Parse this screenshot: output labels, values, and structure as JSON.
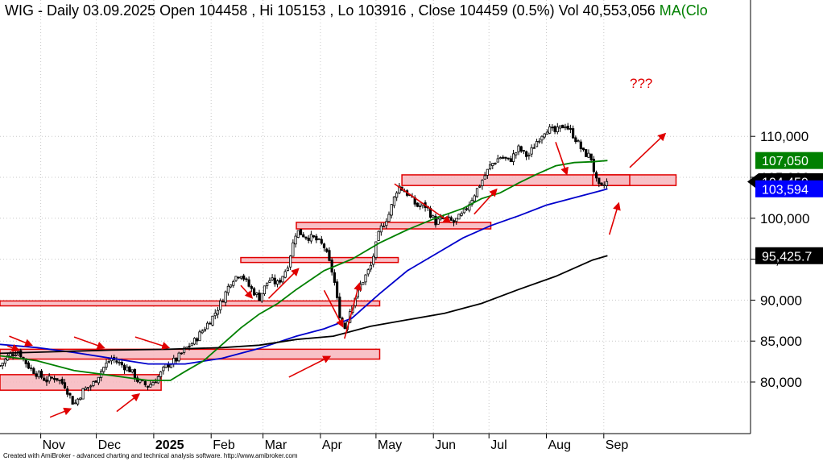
{
  "chart_data": {
    "type": "candlestick",
    "symbol": "WIG",
    "header": {
      "symbol": "WIG",
      "period": "Daily",
      "date": "03.09.2025",
      "open": "Open 104458",
      "high": "Hi 105153",
      "low": "Lo 103916",
      "close": "Close 104459 (0.5%)",
      "volume": "Vol 40,553,056",
      "ma_label": "MA(Clo"
    },
    "yaxis": {
      "ticks": [
        80000,
        85000,
        90000,
        95000,
        100000,
        105000,
        110000
      ],
      "tick_labels": [
        "80,000",
        "85,000",
        "90,000",
        "95,000",
        "100,000",
        "105,000",
        "110,000"
      ],
      "ylim": [
        75000,
        112500
      ]
    },
    "xaxis": {
      "months": [
        {
          "label": "Nov",
          "day": 22
        },
        {
          "label": "Dec",
          "day": 52
        },
        {
          "label": "2025",
          "day": 83,
          "bold": true
        },
        {
          "label": "Feb",
          "day": 114
        },
        {
          "label": "Mar",
          "day": 142
        },
        {
          "label": "Apr",
          "day": 173
        },
        {
          "label": "May",
          "day": 203
        },
        {
          "label": "Jun",
          "day": 234
        },
        {
          "label": "Jul",
          "day": 264
        },
        {
          "label": "Aug",
          "day": 295
        },
        {
          "label": "Sep",
          "day": 326
        }
      ],
      "xlim": [
        0,
        400
      ]
    },
    "price_tags": [
      {
        "value": 107050,
        "label": "107,050",
        "color": "#008000"
      },
      {
        "value": 104459,
        "label": "104,459",
        "color": "#000000",
        "arrow": true
      },
      {
        "value": 103594,
        "label": "103,594",
        "color": "#0000ff"
      },
      {
        "value": 95425.7,
        "label": "95,425.7",
        "color": "#000000"
      }
    ],
    "price_path": [
      [
        0,
        82000
      ],
      [
        5,
        83300
      ],
      [
        10,
        83800
      ],
      [
        15,
        82000
      ],
      [
        20,
        81000
      ],
      [
        25,
        80200
      ],
      [
        30,
        80600
      ],
      [
        35,
        79600
      ],
      [
        40,
        77200
      ],
      [
        45,
        79000
      ],
      [
        50,
        79700
      ],
      [
        55,
        81500
      ],
      [
        60,
        82900
      ],
      [
        65,
        82200
      ],
      [
        70,
        81500
      ],
      [
        75,
        80000
      ],
      [
        80,
        79500
      ],
      [
        85,
        80500
      ],
      [
        90,
        82000
      ],
      [
        95,
        82700
      ],
      [
        100,
        84000
      ],
      [
        105,
        85000
      ],
      [
        110,
        86500
      ],
      [
        115,
        88000
      ],
      [
        120,
        90000
      ],
      [
        125,
        92500
      ],
      [
        130,
        93300
      ],
      [
        135,
        91500
      ],
      [
        140,
        90300
      ],
      [
        145,
        92500
      ],
      [
        150,
        92000
      ],
      [
        155,
        94000
      ],
      [
        160,
        98500
      ],
      [
        165,
        97800
      ],
      [
        170,
        97500
      ],
      [
        175,
        96500
      ],
      [
        180,
        93000
      ],
      [
        183,
        88500
      ],
      [
        186,
        86500
      ],
      [
        190,
        89500
      ],
      [
        195,
        92000
      ],
      [
        200,
        94000
      ],
      [
        205,
        98500
      ],
      [
        210,
        100500
      ],
      [
        215,
        104000
      ],
      [
        220,
        103000
      ],
      [
        225,
        101500
      ],
      [
        230,
        101500
      ],
      [
        235,
        99500
      ],
      [
        240,
        100000
      ],
      [
        245,
        99500
      ],
      [
        250,
        100500
      ],
      [
        255,
        102500
      ],
      [
        260,
        104500
      ],
      [
        265,
        106500
      ],
      [
        270,
        107500
      ],
      [
        275,
        107000
      ],
      [
        280,
        108500
      ],
      [
        285,
        107500
      ],
      [
        290,
        109500
      ],
      [
        295,
        111000
      ],
      [
        300,
        110500
      ],
      [
        305,
        111500
      ],
      [
        310,
        110000
      ],
      [
        315,
        108000
      ],
      [
        319,
        107500
      ],
      [
        322,
        104500
      ],
      [
        324,
        103500
      ],
      [
        326,
        104000
      ],
      [
        328,
        104459
      ]
    ],
    "series": [
      {
        "name": "",
        "color": "#0000cc",
        "points": [
          [
            0,
            84600
          ],
          [
            20,
            84200
          ],
          [
            40,
            83600
          ],
          [
            60,
            82900
          ],
          [
            80,
            82200
          ],
          [
            100,
            82200
          ],
          [
            120,
            82900
          ],
          [
            140,
            84100
          ],
          [
            160,
            85600
          ],
          [
            175,
            86500
          ],
          [
            190,
            87800
          ],
          [
            205,
            90800
          ],
          [
            220,
            93600
          ],
          [
            235,
            95600
          ],
          [
            250,
            97600
          ],
          [
            265,
            99100
          ],
          [
            280,
            100300
          ],
          [
            295,
            101600
          ],
          [
            310,
            102500
          ],
          [
            325,
            103400
          ],
          [
            328,
            103594
          ]
        ]
      },
      {
        "name": "",
        "color": "#008000",
        "points": [
          [
            0,
            83200
          ],
          [
            20,
            82600
          ],
          [
            40,
            81400
          ],
          [
            60,
            80800
          ],
          [
            80,
            80200
          ],
          [
            92,
            80200
          ],
          [
            100,
            81300
          ],
          [
            110,
            82600
          ],
          [
            120,
            84600
          ],
          [
            130,
            86600
          ],
          [
            140,
            88300
          ],
          [
            150,
            89600
          ],
          [
            160,
            91300
          ],
          [
            175,
            93600
          ],
          [
            190,
            95000
          ],
          [
            205,
            97000
          ],
          [
            220,
            98600
          ],
          [
            235,
            100000
          ],
          [
            250,
            101200
          ],
          [
            260,
            102400
          ],
          [
            270,
            103100
          ],
          [
            280,
            104300
          ],
          [
            290,
            105400
          ],
          [
            300,
            106400
          ],
          [
            310,
            106800
          ],
          [
            320,
            106900
          ],
          [
            328,
            107050
          ]
        ]
      },
      {
        "name": "",
        "color": "#000000",
        "points": [
          [
            0,
            83500
          ],
          [
            30,
            83700
          ],
          [
            60,
            83900
          ],
          [
            90,
            84000
          ],
          [
            120,
            84200
          ],
          [
            140,
            84500
          ],
          [
            160,
            85200
          ],
          [
            180,
            85600
          ],
          [
            200,
            86800
          ],
          [
            220,
            87600
          ],
          [
            240,
            88400
          ],
          [
            260,
            89600
          ],
          [
            280,
            91300
          ],
          [
            300,
            92900
          ],
          [
            320,
            94900
          ],
          [
            328,
            95425.7
          ]
        ]
      }
    ],
    "zones": [
      {
        "x0": 0,
        "x1": 87,
        "y0": 79000,
        "y1": 80900
      },
      {
        "x0": 0,
        "x1": 205,
        "y0": 89300,
        "y1": 89900
      },
      {
        "x0": 0,
        "x1": 205,
        "y0": 82800,
        "y1": 84000
      },
      {
        "x0": 130,
        "x1": 215,
        "y0": 94600,
        "y1": 95200
      },
      {
        "x0": 160,
        "x1": 265,
        "y0": 98700,
        "y1": 99500
      },
      {
        "x0": 217,
        "x1": 365,
        "y0": 104000,
        "y1": 105300
      },
      {
        "x0": 320,
        "x1": 340,
        "y0": 104000,
        "y1": 105300
      }
    ],
    "annotation": "???",
    "arrows": [
      {
        "from": [
          4,
          84400
        ],
        "to": [
          10,
          83900
        ]
      },
      {
        "from": [
          5,
          85600
        ],
        "to": [
          17,
          84500
        ]
      },
      {
        "from": [
          40,
          85500
        ],
        "to": [
          56,
          84200
        ]
      },
      {
        "from": [
          73,
          85500
        ],
        "to": [
          91,
          84200
        ]
      },
      {
        "from": [
          27,
          75700
        ],
        "to": [
          38,
          76700
        ]
      },
      {
        "from": [
          63,
          76400
        ],
        "to": [
          75,
          78500
        ]
      },
      {
        "from": [
          130,
          91800
        ],
        "to": [
          136,
          90300
        ]
      },
      {
        "from": [
          145,
          90200
        ],
        "to": [
          161,
          93800
        ]
      },
      {
        "from": [
          156,
          80600
        ],
        "to": [
          178,
          83100
        ]
      },
      {
        "from": [
          175,
          91200
        ],
        "to": [
          185,
          86800
        ]
      },
      {
        "from": [
          186,
          85300
        ],
        "to": [
          194,
          92000
        ]
      },
      {
        "from": [
          213,
          104200
        ],
        "to": [
          243,
          99500
        ]
      },
      {
        "from": [
          256,
          100500
        ],
        "to": [
          268,
          103500
        ]
      },
      {
        "from": [
          300,
          109300
        ],
        "to": [
          306,
          105400
        ]
      },
      {
        "from": [
          340,
          106200
        ],
        "to": [
          359,
          110300
        ]
      },
      {
        "from": [
          329,
          98000
        ],
        "to": [
          334,
          101800
        ]
      }
    ],
    "credit": "Created with AmiBroker - advanced charting and technical analysis software. http://www.amibroker.com"
  }
}
